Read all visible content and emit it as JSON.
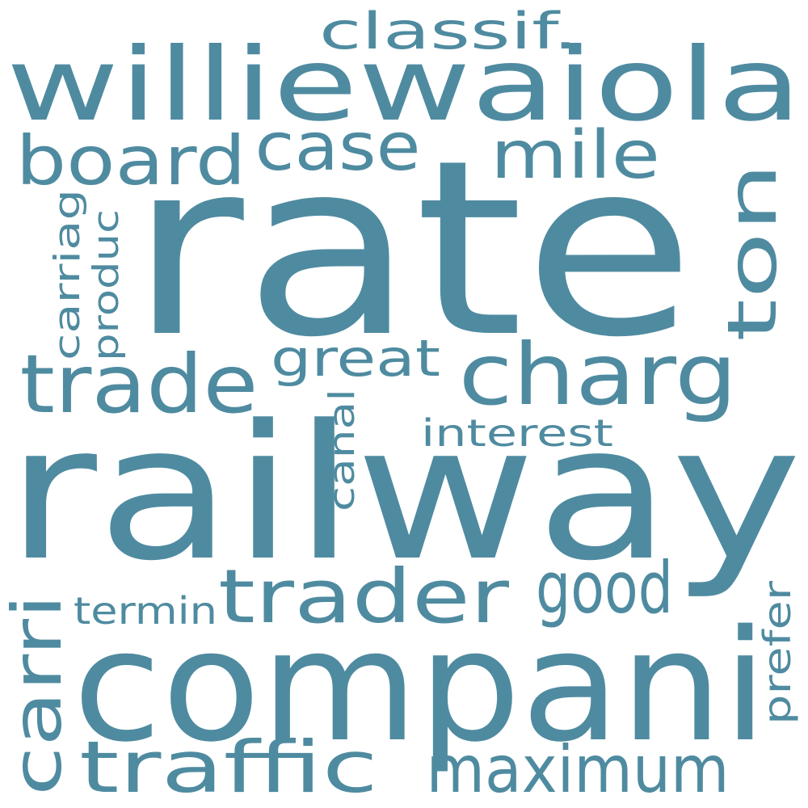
{
  "word_color": "#4f8ba0",
  "background": "#ffffff",
  "words": [
    {
      "id": "rate",
      "text": "rate"
    },
    {
      "id": "railway",
      "text": "railway"
    },
    {
      "id": "compani",
      "text": "compani"
    },
    {
      "id": "williewaiola",
      "text": "williewaiola"
    },
    {
      "id": "charg",
      "text": "charg"
    },
    {
      "id": "trade",
      "text": "trade"
    },
    {
      "id": "trader",
      "text": "trader"
    },
    {
      "id": "traffic",
      "text": "traffic"
    },
    {
      "id": "maximum",
      "text": "maximum"
    },
    {
      "id": "board",
      "text": "board"
    },
    {
      "id": "case",
      "text": "case"
    },
    {
      "id": "mile",
      "text": "mile"
    },
    {
      "id": "good",
      "text": "good"
    },
    {
      "id": "ton",
      "text": "ton"
    },
    {
      "id": "carri",
      "text": "carri"
    },
    {
      "id": "classif",
      "text": "classif."
    },
    {
      "id": "great",
      "text": "great"
    },
    {
      "id": "interest",
      "text": "interest"
    },
    {
      "id": "canal",
      "text": "canal"
    },
    {
      "id": "carriag",
      "text": "carriag"
    },
    {
      "id": "produc",
      "text": "produc"
    },
    {
      "id": "termin",
      "text": "termin"
    },
    {
      "id": "prefer",
      "text": "prefer"
    }
  ]
}
